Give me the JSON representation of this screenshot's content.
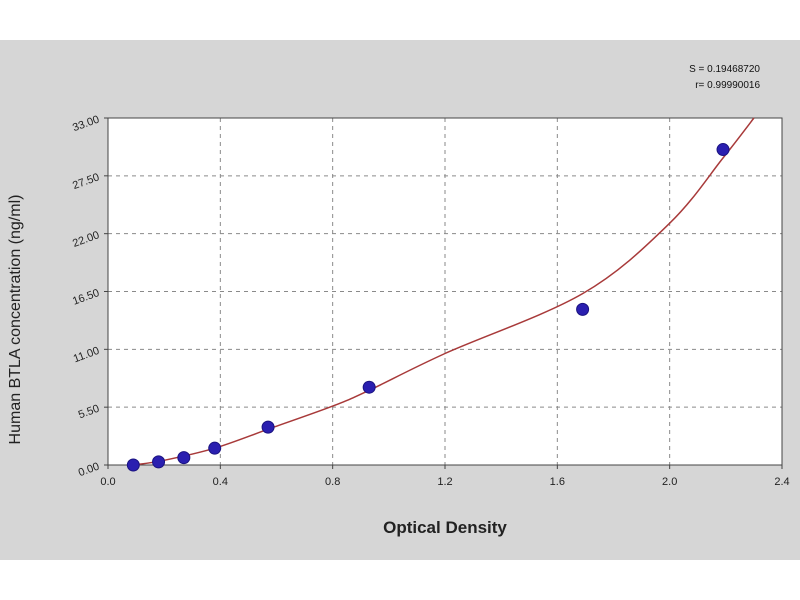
{
  "chart_data": {
    "type": "scatter",
    "xlabel": "Optical Density",
    "ylabel": "Human BTLA concentration (ng/ml)",
    "xlim": [
      0.0,
      2.4
    ],
    "ylim": [
      0.0,
      33.0
    ],
    "x_ticks": [
      "0.0",
      "0.4",
      "0.8",
      "1.2",
      "1.6",
      "2.0",
      "2.4"
    ],
    "y_ticks": [
      "0.00",
      "5.50",
      "11.00",
      "16.50",
      "22.00",
      "27.50",
      "33.00"
    ],
    "grid": true,
    "series": [
      {
        "points": [
          {
            "x": 0.09,
            "y": 0.0
          },
          {
            "x": 0.18,
            "y": 0.3
          },
          {
            "x": 0.27,
            "y": 0.7
          },
          {
            "x": 0.38,
            "y": 1.6
          },
          {
            "x": 0.57,
            "y": 3.6
          },
          {
            "x": 0.93,
            "y": 7.4
          },
          {
            "x": 1.69,
            "y": 14.8
          },
          {
            "x": 2.19,
            "y": 30.0
          }
        ],
        "color": "#2a1fb0"
      }
    ],
    "fit_curve": {
      "color": "#a83a3a",
      "points": [
        {
          "x": 0.09,
          "y": 0.0
        },
        {
          "x": 0.2,
          "y": 0.45
        },
        {
          "x": 0.38,
          "y": 1.6
        },
        {
          "x": 0.57,
          "y": 3.4
        },
        {
          "x": 0.8,
          "y": 5.6
        },
        {
          "x": 0.93,
          "y": 7.1
        },
        {
          "x": 1.2,
          "y": 10.6
        },
        {
          "x": 1.69,
          "y": 16.3
        },
        {
          "x": 2.0,
          "y": 23.0
        },
        {
          "x": 2.19,
          "y": 29.2
        },
        {
          "x": 2.3,
          "y": 33.0
        }
      ]
    },
    "stats_text": [
      "S = 0.19468720",
      "r= 0.99990016"
    ]
  }
}
